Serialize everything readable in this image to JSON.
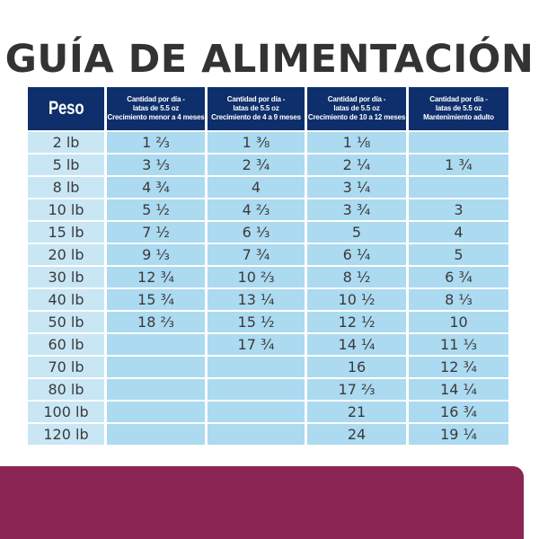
{
  "title": "GUÍA DE ALIMENTACIÓN",
  "table": {
    "headers": [
      "Peso",
      "Cantidad por día - latas de 5.5 oz Crecimiento menor a 4 meses",
      "Cantidad por día - latas de 5.5 oz Crecimiento de 4 a 9 meses",
      "Cantidad por día - latas de 5.5 oz Crecimiento de 10 a 12 meses",
      "Cantidad por día - latas de 5.5 oz Mantenimiento adulto"
    ],
    "header_lines": [
      [
        "Peso"
      ],
      [
        "Cantidad por día -",
        "latas de 5.5 oz",
        "Crecimiento menor a 4 meses"
      ],
      [
        "Cantidad por día -",
        "latas de 5.5 oz",
        "Crecimiento de 4 a 9 meses"
      ],
      [
        "Cantidad por día -",
        "latas de 5.5 oz",
        "Crecimiento de 10 a 12 meses"
      ],
      [
        "Cantidad por día -",
        "latas de 5.5 oz",
        "Mantenimiento adulto"
      ]
    ],
    "rows": [
      [
        "2 lb",
        "1 ⅔",
        "1 ⅜",
        "1 ⅛",
        ""
      ],
      [
        "5 lb",
        "3 ⅓",
        "2 ¾",
        "2 ¼",
        "1 ¾"
      ],
      [
        "8 lb",
        "4 ¾",
        "4",
        "3 ¼",
        ""
      ],
      [
        "10 lb",
        "5 ½",
        "4 ⅔",
        "3 ¾",
        "3"
      ],
      [
        "15 lb",
        "7 ½",
        "6 ⅓",
        "5",
        "4"
      ],
      [
        "20 lb",
        "9 ⅓",
        "7 ¾",
        "6 ¼",
        "5"
      ],
      [
        "30 lb",
        "12 ¾",
        "10 ⅔",
        "8 ½",
        "6 ¾"
      ],
      [
        "40 lb",
        "15 ¾",
        "13 ¼",
        "10 ½",
        "8 ⅓"
      ],
      [
        "50 lb",
        "18 ⅔",
        "15 ½",
        "12 ½",
        "10"
      ],
      [
        "60 lb",
        "",
        "17 ¾",
        "14 ¼",
        "11 ⅓"
      ],
      [
        "70 lb",
        "",
        "",
        "16",
        "12 ¾"
      ],
      [
        "80 lb",
        "",
        "",
        "17 ⅔",
        "14 ¼"
      ],
      [
        "100 lb",
        "",
        "",
        "21",
        "16 ¾"
      ],
      [
        "120 lb",
        "",
        "",
        "24",
        "19 ¼"
      ]
    ]
  },
  "colors": {
    "header_bg": "#0e2f6b",
    "weight_cell_bg": "#c9e6f5",
    "value_cell_bg": "#acdaf0",
    "text": "#3a3a3a",
    "title_text": "#333333",
    "footer_band": "#8a2554"
  }
}
